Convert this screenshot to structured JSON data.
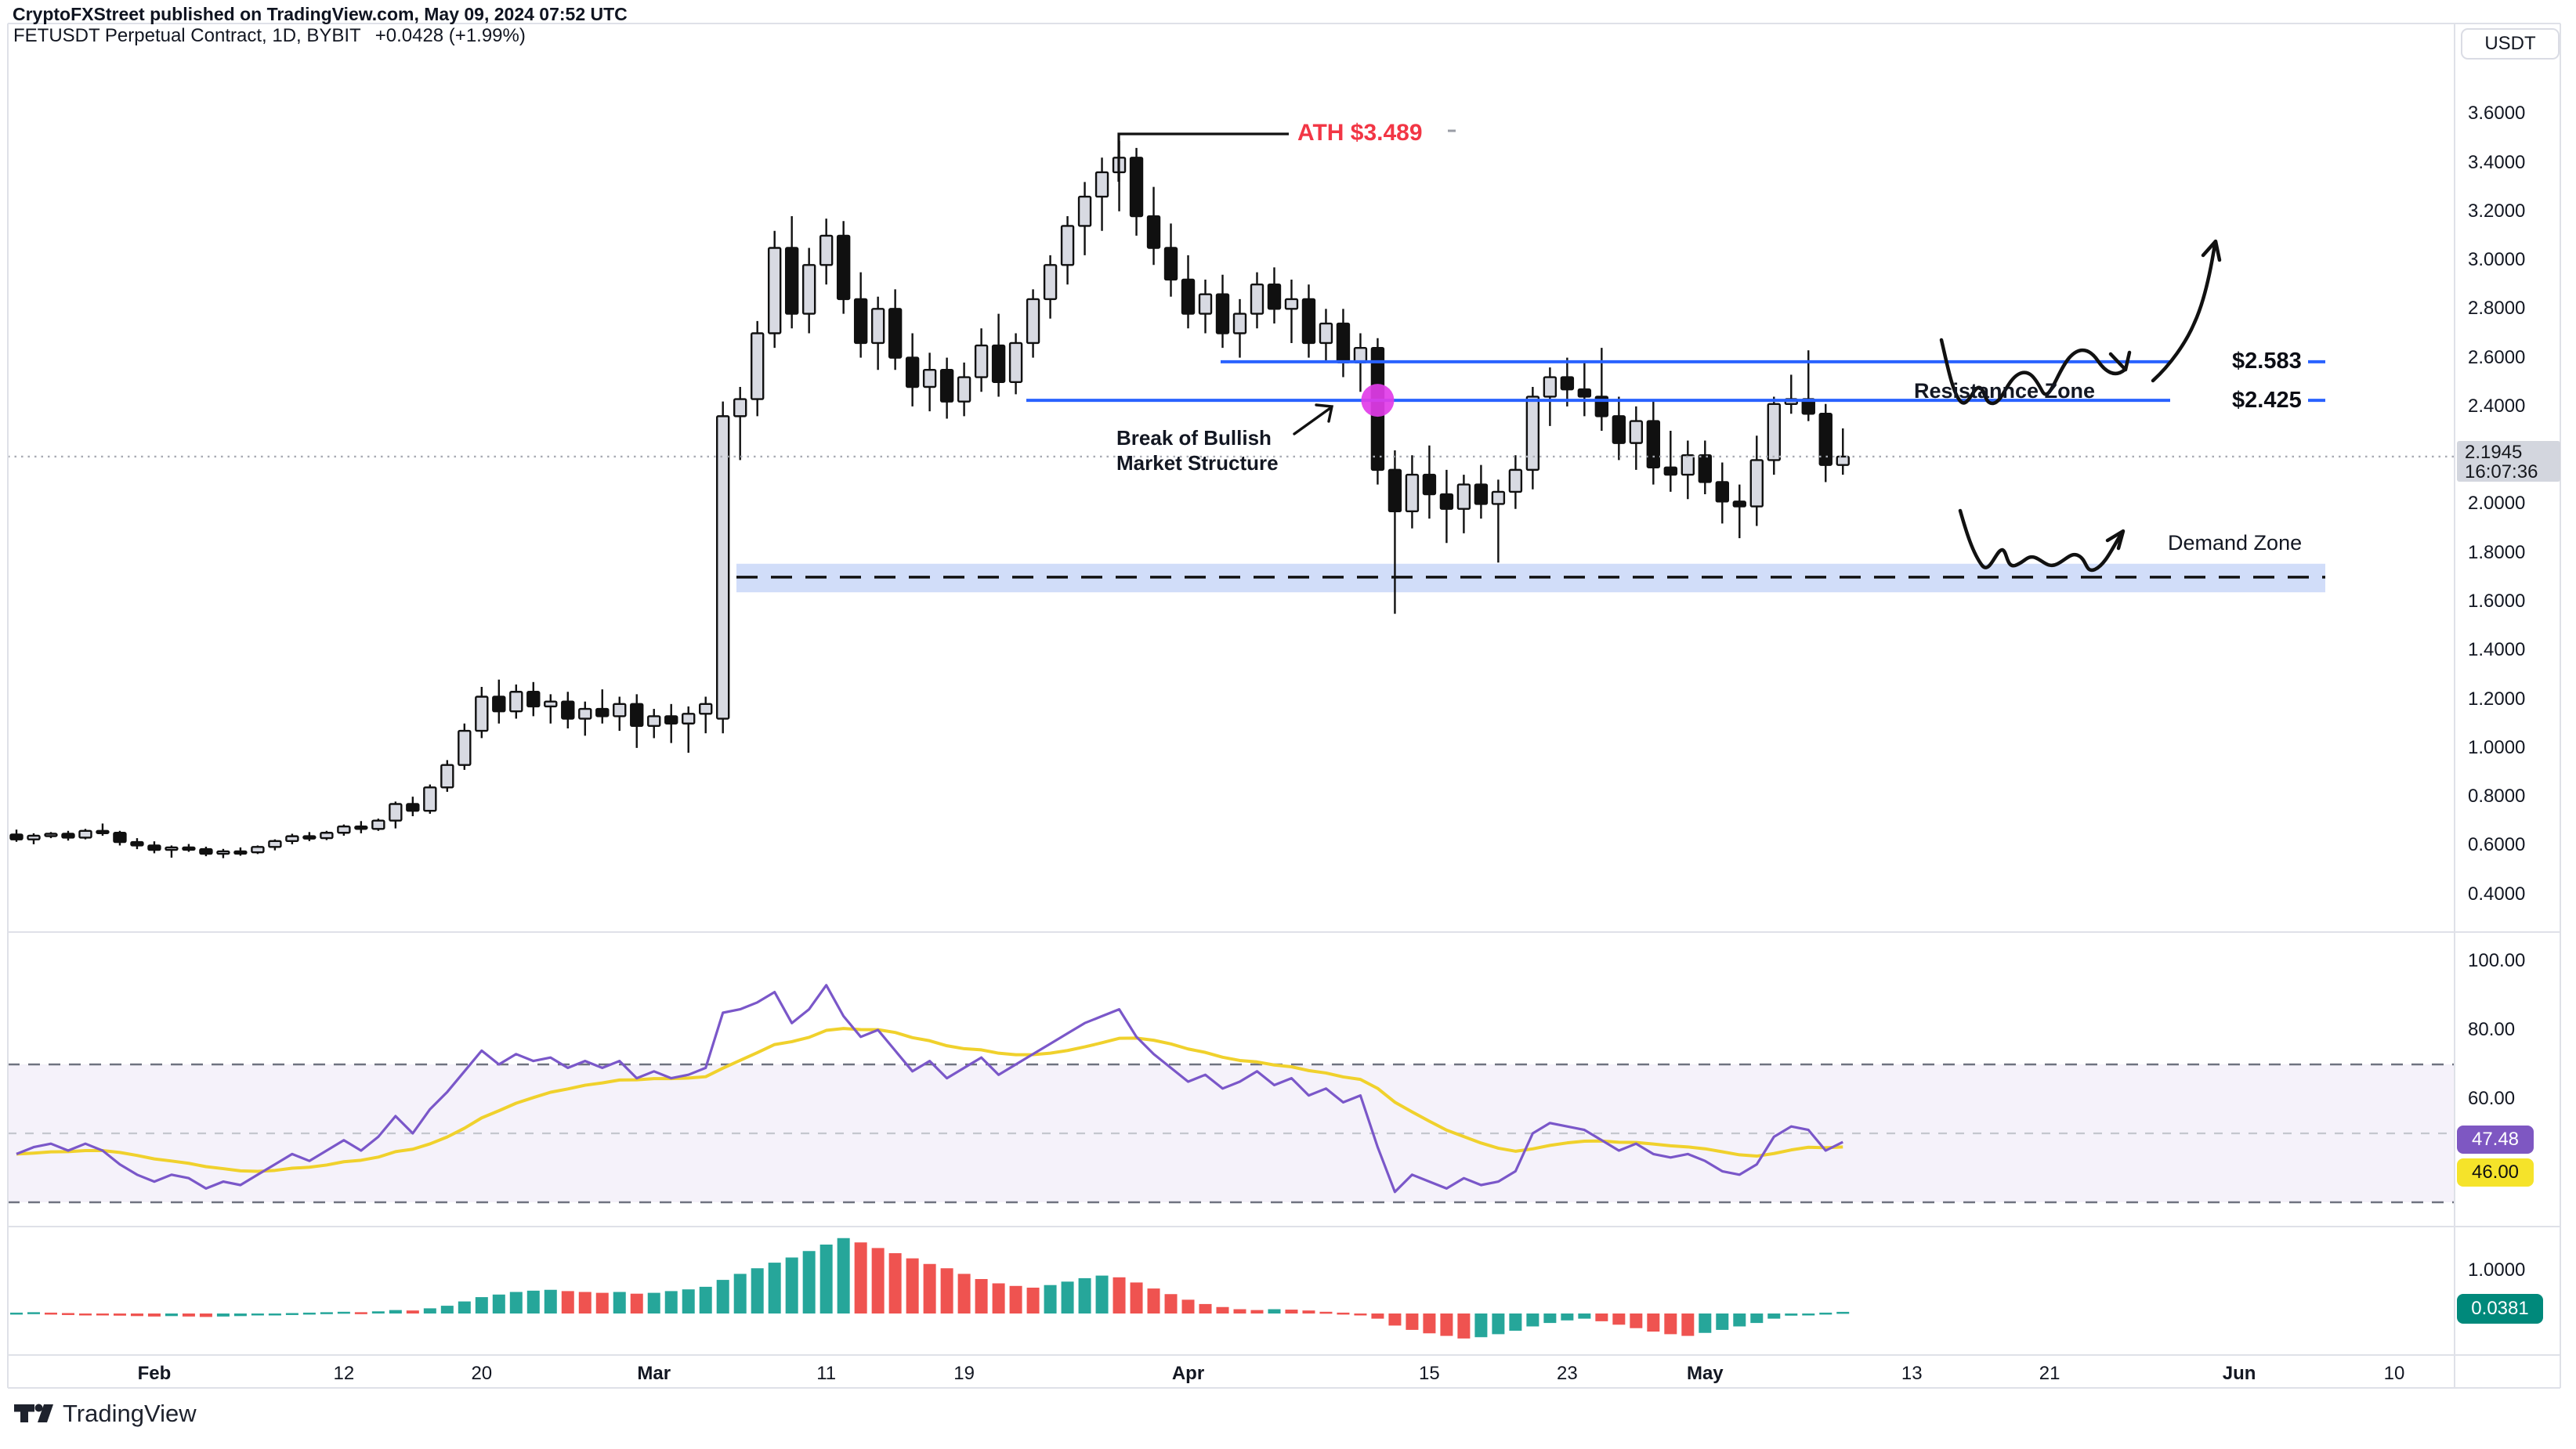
{
  "header": {
    "attribution": "CryptoFXStreet published on TradingView.com, May 09, 2024 07:52 UTC"
  },
  "chart": {
    "title": "FETUSDT Perpetual Contract, 1D, BYBIT",
    "change": "+0.0428 (+1.99%)"
  },
  "price_axis": {
    "unit": "USDT",
    "ticks": [
      "3.6000",
      "3.4000",
      "3.2000",
      "3.0000",
      "2.8000",
      "2.6000",
      "2.4000",
      "2.0000",
      "1.8000",
      "1.6000",
      "1.4000",
      "1.2000",
      "1.0000",
      "0.8000",
      "0.6000",
      "0.4000"
    ],
    "last_price": "2.1945",
    "last_time": "16:07:36"
  },
  "time_axis": {
    "ticks": [
      {
        "label": "Feb",
        "slot": 8,
        "bold": true
      },
      {
        "label": "12",
        "slot": 19,
        "bold": false
      },
      {
        "label": "20",
        "slot": 27,
        "bold": false
      },
      {
        "label": "Mar",
        "slot": 37,
        "bold": true
      },
      {
        "label": "11",
        "slot": 47,
        "bold": false
      },
      {
        "label": "19",
        "slot": 55,
        "bold": false
      },
      {
        "label": "Apr",
        "slot": 68,
        "bold": true
      },
      {
        "label": "15",
        "slot": 82,
        "bold": false
      },
      {
        "label": "23",
        "slot": 90,
        "bold": false
      },
      {
        "label": "May",
        "slot": 98,
        "bold": true
      },
      {
        "label": "13",
        "slot": 110,
        "bold": false
      },
      {
        "label": "21",
        "slot": 118,
        "bold": false
      },
      {
        "label": "Jun",
        "slot": 129,
        "bold": true
      },
      {
        "label": "10",
        "slot": 138,
        "bold": false
      }
    ]
  },
  "annotations": {
    "ath": "ATH $3.489",
    "level_1": "$2.583",
    "level_2": "$2.425",
    "resistance_zone": "Resistannce Zone",
    "demand_zone": "Demand Zone",
    "break_line1": "Break of Bullish",
    "break_line2": "Market Structure"
  },
  "rsi_panel": {
    "ticks": [
      "100.00",
      "80.00",
      "60.00"
    ],
    "value": "47.48",
    "ma_value": "46.00"
  },
  "macd_panel": {
    "tick": "1.0000",
    "value": "0.0381"
  },
  "watermark": "TradingView",
  "colors": {
    "accent_blue": "#2962ff",
    "ath_red": "#f23645",
    "magenta_marker": "#e13ce8",
    "demand_zone_fill": "#c9d7f8",
    "rsi_line": "#7a57c9",
    "rsi_ma_line": "#f0d12c",
    "rsi_badge_bg": "#7e57c2",
    "rsi_ma_badge_bg": "#f5e32a",
    "histogram_up": "#26a69a",
    "histogram_down": "#ef5350",
    "macd_badge_bg": "#00897b",
    "candle_up_fill": "#d8dae2",
    "candle_down_fill": "#101010"
  },
  "chart_data": {
    "type": "candlestick",
    "title": "FETUSDT Perpetual Contract, 1D, BYBIT",
    "symbol": "FETUSDT",
    "interval": "1D",
    "exchange": "BYBIT",
    "start_date": "2024-01-24",
    "end_date": "2024-05-09",
    "price_axis_range": [
      0.245,
      3.97
    ],
    "total_slots": 142,
    "levels": {
      "ath": 3.489,
      "resistance_top": 2.583,
      "resistance_bottom": 2.425,
      "last_price": 2.1945,
      "demand_zone_top": 1.755,
      "demand_zone_bottom": 1.638,
      "demand_zone_mid": 1.7
    },
    "candles_ohlc": [
      [
        0.645,
        0.665,
        0.615,
        0.625
      ],
      [
        0.625,
        0.65,
        0.605,
        0.64
      ],
      [
        0.64,
        0.655,
        0.63,
        0.648
      ],
      [
        0.648,
        0.66,
        0.62,
        0.632
      ],
      [
        0.632,
        0.668,
        0.625,
        0.66
      ],
      [
        0.66,
        0.69,
        0.64,
        0.652
      ],
      [
        0.652,
        0.66,
        0.6,
        0.614
      ],
      [
        0.614,
        0.63,
        0.585,
        0.6
      ],
      [
        0.6,
        0.617,
        0.568,
        0.582
      ],
      [
        0.582,
        0.6,
        0.55,
        0.592
      ],
      [
        0.592,
        0.606,
        0.574,
        0.585
      ],
      [
        0.585,
        0.595,
        0.556,
        0.566
      ],
      [
        0.566,
        0.586,
        0.548,
        0.576
      ],
      [
        0.576,
        0.592,
        0.558,
        0.572
      ],
      [
        0.572,
        0.6,
        0.565,
        0.594
      ],
      [
        0.594,
        0.625,
        0.58,
        0.618
      ],
      [
        0.618,
        0.648,
        0.605,
        0.638
      ],
      [
        0.638,
        0.655,
        0.618,
        0.63
      ],
      [
        0.63,
        0.66,
        0.622,
        0.652
      ],
      [
        0.652,
        0.686,
        0.64,
        0.678
      ],
      [
        0.678,
        0.7,
        0.65,
        0.668
      ],
      [
        0.668,
        0.71,
        0.66,
        0.702
      ],
      [
        0.702,
        0.78,
        0.67,
        0.77
      ],
      [
        0.77,
        0.8,
        0.72,
        0.742
      ],
      [
        0.742,
        0.85,
        0.73,
        0.838
      ],
      [
        0.838,
        0.95,
        0.82,
        0.93
      ],
      [
        0.93,
        1.1,
        0.91,
        1.07
      ],
      [
        1.07,
        1.25,
        1.04,
        1.21
      ],
      [
        1.21,
        1.28,
        1.1,
        1.15
      ],
      [
        1.15,
        1.26,
        1.12,
        1.23
      ],
      [
        1.23,
        1.27,
        1.13,
        1.17
      ],
      [
        1.17,
        1.22,
        1.1,
        1.19
      ],
      [
        1.19,
        1.23,
        1.08,
        1.12
      ],
      [
        1.12,
        1.19,
        1.05,
        1.16
      ],
      [
        1.16,
        1.24,
        1.1,
        1.13
      ],
      [
        1.13,
        1.21,
        1.07,
        1.18
      ],
      [
        1.18,
        1.22,
        1.0,
        1.09
      ],
      [
        1.09,
        1.16,
        1.04,
        1.13
      ],
      [
        1.13,
        1.18,
        1.02,
        1.1
      ],
      [
        1.1,
        1.17,
        0.98,
        1.14
      ],
      [
        1.14,
        1.21,
        1.06,
        1.18
      ],
      [
        1.12,
        2.42,
        1.06,
        2.36
      ],
      [
        2.36,
        2.48,
        2.18,
        2.43
      ],
      [
        2.43,
        2.75,
        2.36,
        2.7
      ],
      [
        2.7,
        3.12,
        2.64,
        3.05
      ],
      [
        3.05,
        3.18,
        2.72,
        2.78
      ],
      [
        2.78,
        3.05,
        2.7,
        2.98
      ],
      [
        2.98,
        3.17,
        2.9,
        3.1
      ],
      [
        3.1,
        3.16,
        2.78,
        2.84
      ],
      [
        2.84,
        2.95,
        2.6,
        2.66
      ],
      [
        2.66,
        2.85,
        2.55,
        2.8
      ],
      [
        2.8,
        2.88,
        2.55,
        2.6
      ],
      [
        2.6,
        2.7,
        2.4,
        2.48
      ],
      [
        2.48,
        2.62,
        2.38,
        2.55
      ],
      [
        2.55,
        2.6,
        2.35,
        2.42
      ],
      [
        2.42,
        2.58,
        2.36,
        2.52
      ],
      [
        2.52,
        2.72,
        2.46,
        2.65
      ],
      [
        2.65,
        2.78,
        2.44,
        2.5
      ],
      [
        2.5,
        2.7,
        2.45,
        2.66
      ],
      [
        2.66,
        2.88,
        2.6,
        2.84
      ],
      [
        2.84,
        3.02,
        2.76,
        2.98
      ],
      [
        2.98,
        3.18,
        2.9,
        3.14
      ],
      [
        3.14,
        3.32,
        3.02,
        3.26
      ],
      [
        3.26,
        3.42,
        3.12,
        3.36
      ],
      [
        3.36,
        3.489,
        3.2,
        3.42
      ],
      [
        3.42,
        3.46,
        3.1,
        3.18
      ],
      [
        3.18,
        3.3,
        2.98,
        3.05
      ],
      [
        3.05,
        3.15,
        2.85,
        2.92
      ],
      [
        2.92,
        3.02,
        2.72,
        2.78
      ],
      [
        2.78,
        2.92,
        2.7,
        2.86
      ],
      [
        2.86,
        2.94,
        2.64,
        2.7
      ],
      [
        2.7,
        2.84,
        2.6,
        2.78
      ],
      [
        2.78,
        2.95,
        2.72,
        2.9
      ],
      [
        2.9,
        2.97,
        2.74,
        2.8
      ],
      [
        2.8,
        2.92,
        2.66,
        2.84
      ],
      [
        2.84,
        2.9,
        2.6,
        2.66
      ],
      [
        2.66,
        2.8,
        2.58,
        2.74
      ],
      [
        2.74,
        2.8,
        2.52,
        2.58
      ],
      [
        2.58,
        2.7,
        2.46,
        2.64
      ],
      [
        2.64,
        2.68,
        2.08,
        2.14
      ],
      [
        2.14,
        2.22,
        1.55,
        1.97
      ],
      [
        1.97,
        2.2,
        1.9,
        2.12
      ],
      [
        2.12,
        2.24,
        1.94,
        2.04
      ],
      [
        2.04,
        2.14,
        1.84,
        1.98
      ],
      [
        1.98,
        2.12,
        1.88,
        2.08
      ],
      [
        2.08,
        2.16,
        1.94,
        2.0
      ],
      [
        2.0,
        2.1,
        1.76,
        2.05
      ],
      [
        2.05,
        2.2,
        1.98,
        2.14
      ],
      [
        2.14,
        2.48,
        2.06,
        2.44
      ],
      [
        2.44,
        2.56,
        2.32,
        2.52
      ],
      [
        2.52,
        2.6,
        2.4,
        2.47
      ],
      [
        2.47,
        2.58,
        2.36,
        2.44
      ],
      [
        2.44,
        2.64,
        2.3,
        2.36
      ],
      [
        2.36,
        2.44,
        2.18,
        2.25
      ],
      [
        2.25,
        2.4,
        2.14,
        2.34
      ],
      [
        2.34,
        2.42,
        2.08,
        2.15
      ],
      [
        2.15,
        2.3,
        2.05,
        2.12
      ],
      [
        2.12,
        2.26,
        2.02,
        2.2
      ],
      [
        2.2,
        2.26,
        2.04,
        2.09
      ],
      [
        2.09,
        2.17,
        1.92,
        2.01
      ],
      [
        2.01,
        2.08,
        1.86,
        1.99
      ],
      [
        1.99,
        2.28,
        1.91,
        2.18
      ],
      [
        2.18,
        2.44,
        2.12,
        2.41
      ],
      [
        2.41,
        2.53,
        2.37,
        2.43
      ],
      [
        2.43,
        2.63,
        2.34,
        2.37
      ],
      [
        2.37,
        2.41,
        2.09,
        2.16
      ],
      [
        2.16,
        2.31,
        2.12,
        2.1945
      ]
    ],
    "indicators": {
      "rsi": {
        "name": "RSI",
        "bands": [
          70,
          50,
          30
        ],
        "visible_range": [
          24,
          108
        ],
        "last": 47.48,
        "ma_last": 46.0,
        "ma_period": 14,
        "values": [
          44,
          46,
          47,
          45,
          47,
          45,
          41,
          38,
          36,
          38,
          37,
          34,
          36,
          35,
          38,
          41,
          44,
          42,
          45,
          48,
          45,
          49,
          55,
          50,
          57,
          62,
          68,
          74,
          70,
          73,
          71,
          72,
          69,
          71,
          69,
          71,
          66,
          68,
          66,
          67,
          69,
          85,
          86,
          88,
          91,
          82,
          86,
          93,
          84,
          78,
          80,
          74,
          68,
          71,
          66,
          69,
          72,
          67,
          70,
          73,
          76,
          79,
          82,
          84,
          86,
          78,
          73,
          69,
          65,
          67,
          63,
          65,
          68,
          64,
          66,
          61,
          63,
          59,
          61,
          46,
          33,
          38,
          36,
          34,
          37,
          35,
          36,
          39,
          50,
          53,
          52,
          51,
          48,
          45,
          47,
          44,
          43,
          44,
          42,
          39,
          38,
          41,
          49,
          52,
          51,
          45,
          47.48
        ]
      },
      "histogram": {
        "name": "MACD histogram",
        "last": 0.0381,
        "values": [
          0.02,
          0.03,
          0.02,
          0.01,
          -0.02,
          -0.03,
          -0.05,
          -0.06,
          -0.07,
          -0.06,
          -0.07,
          -0.08,
          -0.07,
          -0.06,
          -0.04,
          -0.02,
          0.01,
          0.02,
          0.03,
          0.04,
          0.03,
          0.05,
          0.08,
          0.07,
          0.12,
          0.18,
          0.28,
          0.38,
          0.44,
          0.5,
          0.53,
          0.55,
          0.52,
          0.5,
          0.48,
          0.5,
          0.46,
          0.48,
          0.52,
          0.56,
          0.62,
          0.78,
          0.92,
          1.05,
          1.18,
          1.3,
          1.45,
          1.6,
          1.75,
          1.65,
          1.52,
          1.4,
          1.28,
          1.15,
          1.05,
          0.92,
          0.8,
          0.7,
          0.64,
          0.6,
          0.66,
          0.74,
          0.82,
          0.88,
          0.84,
          0.72,
          0.58,
          0.45,
          0.32,
          0.22,
          0.15,
          0.1,
          0.08,
          0.1,
          0.09,
          0.07,
          0.04,
          0.02,
          0.0,
          -0.12,
          -0.28,
          -0.38,
          -0.46,
          -0.52,
          -0.58,
          -0.55,
          -0.48,
          -0.4,
          -0.3,
          -0.22,
          -0.16,
          -0.12,
          -0.18,
          -0.26,
          -0.34,
          -0.42,
          -0.48,
          -0.52,
          -0.45,
          -0.38,
          -0.3,
          -0.22,
          -0.12,
          -0.05,
          0.0,
          0.02,
          0.0381
        ]
      }
    }
  }
}
